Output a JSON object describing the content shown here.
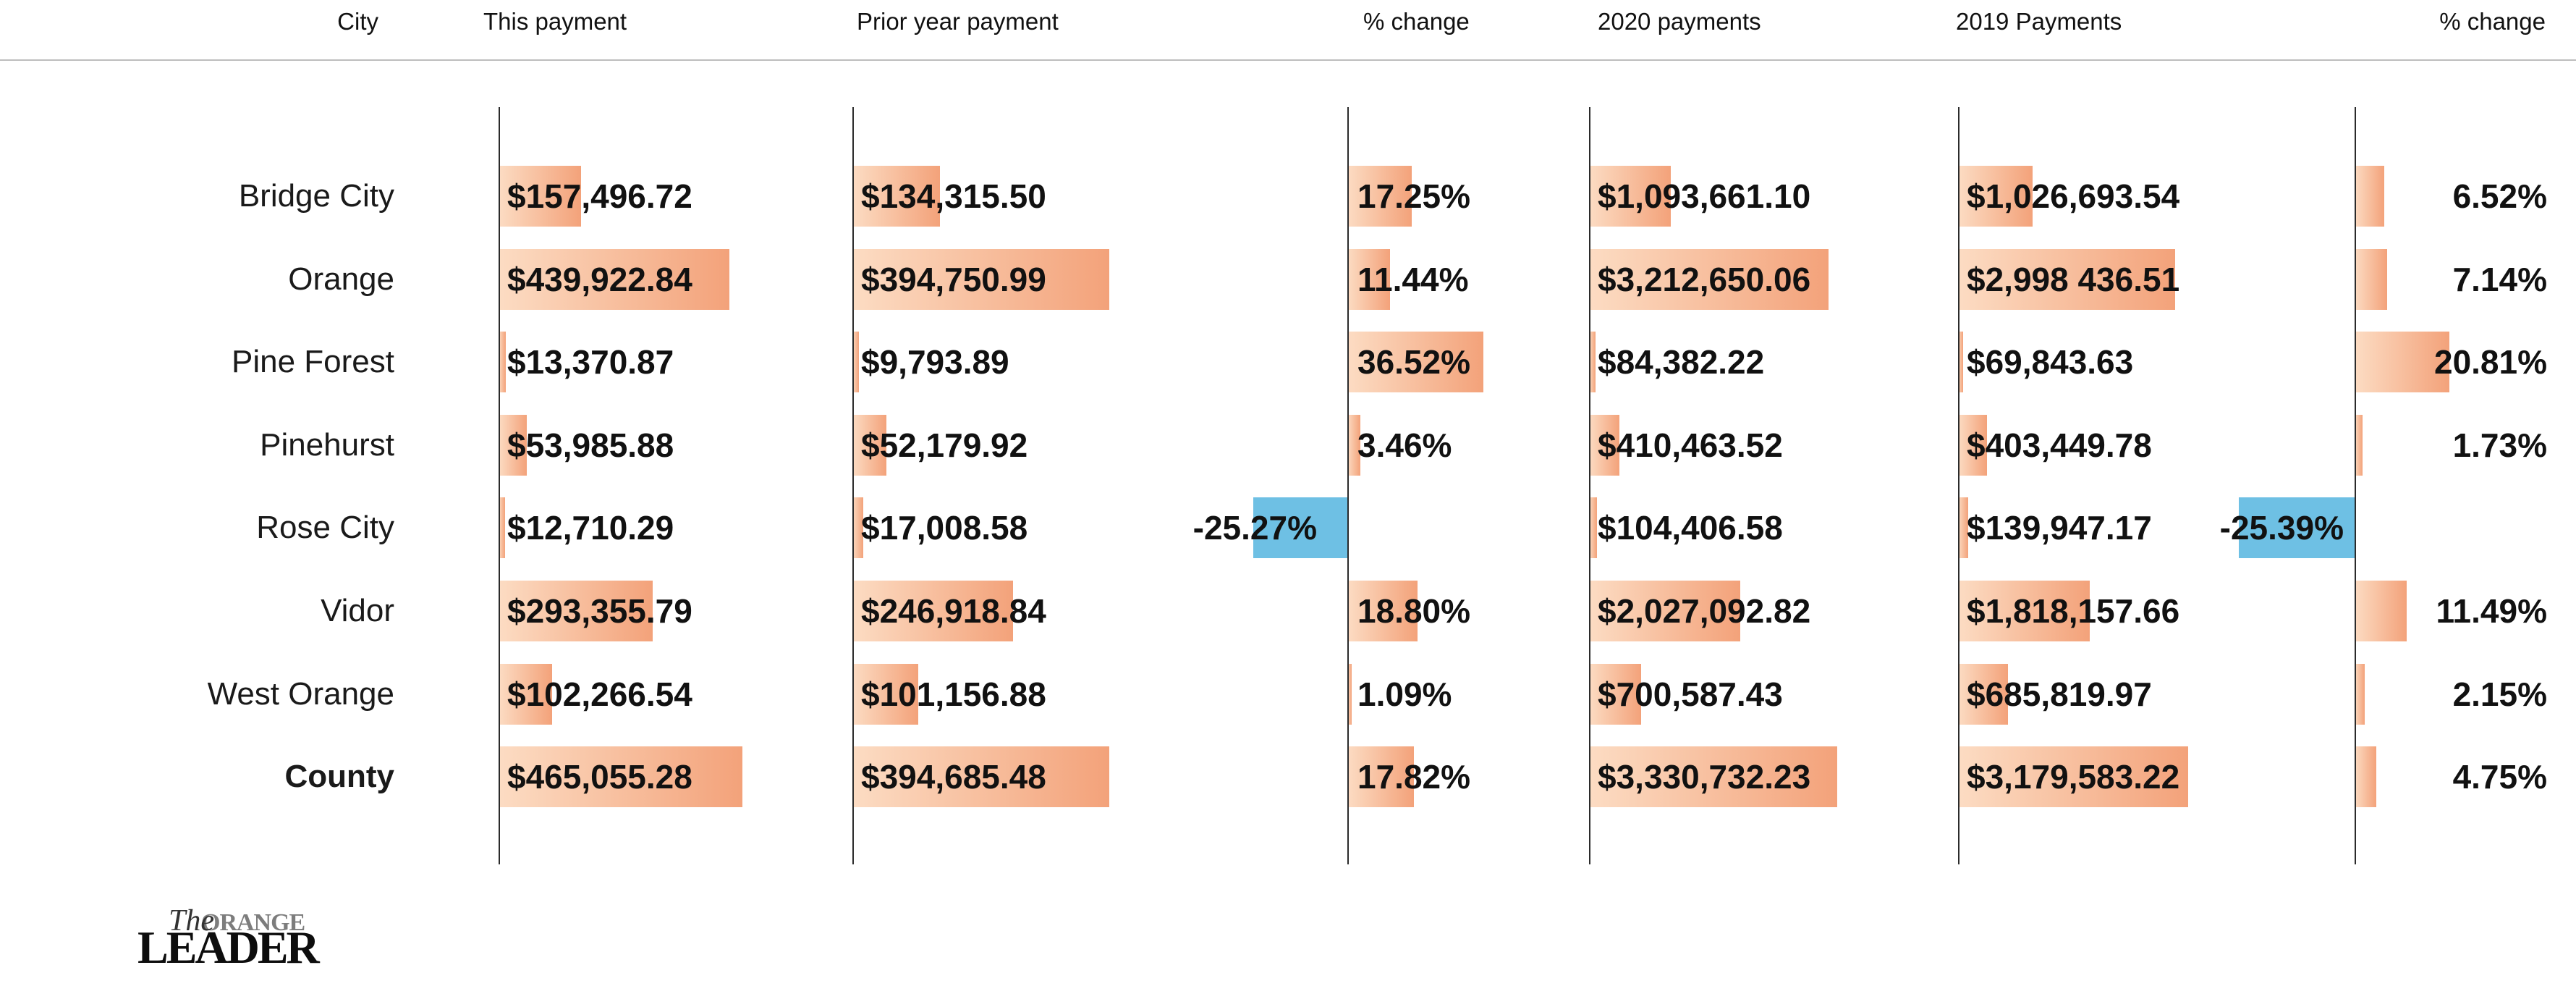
{
  "header": {
    "columns": [
      "City",
      "This payment",
      "Prior year payment",
      "% change",
      "2020 payments",
      "2019 Payments",
      "% change"
    ]
  },
  "rows": [
    {
      "city": "Bridge City",
      "this_payment": "$157,496.72",
      "prior_payment": "$134,315.50",
      "pct_change_prior": "17.25%",
      "payments_2020": "$1,093,661.10",
      "payments_2019": "$1,026,693.54",
      "pct_change_2019": "6.52%",
      "bold": false
    },
    {
      "city": "Orange",
      "this_payment": "$439,922.84",
      "prior_payment": "$394,750.99",
      "pct_change_prior": "11.44%",
      "payments_2020": "$3,212,650.06",
      "payments_2019": "$2,998 436.51",
      "pct_change_2019": "7.14%",
      "bold": false
    },
    {
      "city": "Pine Forest",
      "this_payment": "$13,370.87",
      "prior_payment": "$9,793.89",
      "pct_change_prior": "36.52%",
      "payments_2020": "$84,382.22",
      "payments_2019": "$69,843.63",
      "pct_change_2019": "20.81%",
      "bold": false
    },
    {
      "city": "Pinehurst",
      "this_payment": "$53,985.88",
      "prior_payment": "$52,179.92",
      "pct_change_prior": "3.46%",
      "payments_2020": "$410,463.52",
      "payments_2019": "$403,449.78",
      "pct_change_2019": "1.73%",
      "bold": false
    },
    {
      "city": "Rose City",
      "this_payment": "$12,710.29",
      "prior_payment": "$17,008.58",
      "pct_change_prior": "-25.27%",
      "payments_2020": "$104,406.58",
      "payments_2019": "$139,947.17",
      "pct_change_2019": "-25.39%",
      "bold": false
    },
    {
      "city": "Vidor",
      "this_payment": "$293,355.79",
      "prior_payment": "$246,918.84",
      "pct_change_prior": "18.80%",
      "payments_2020": "$2,027,092.82",
      "payments_2019": "$1,818,157.66",
      "pct_change_2019": "11.49%",
      "bold": false
    },
    {
      "city": "West Orange",
      "this_payment": "$102,266.54",
      "prior_payment": "$101,156.88",
      "pct_change_prior": "1.09%",
      "payments_2020": "$700,587.43",
      "payments_2019": "$685,819.97",
      "pct_change_2019": "2.15%",
      "bold": false
    },
    {
      "city": "County",
      "this_payment": "$465,055.28",
      "prior_payment": "$394,685.48",
      "pct_change_prior": "17.82%",
      "payments_2020": "$3,330,732.23",
      "payments_2019": "$3,179,583.22",
      "pct_change_2019": "4.75%",
      "bold": true
    }
  ],
  "logo": {
    "the": "The",
    "orange": "ORANGE",
    "leader": "LEADER"
  },
  "colors": {
    "bar_positive_start": "#fcdcc3",
    "bar_positive_end": "#f3a27a",
    "bar_negative_blue": "#6ec0e4",
    "axis_line": "#2b2b2b",
    "header_rule": "#bdbdbd",
    "text": "#111111"
  },
  "chart_data": {
    "type": "table",
    "subtype": "table-with-bars",
    "categories": [
      "Bridge City",
      "Orange",
      "Pine Forest",
      "Pinehurst",
      "Rose City",
      "Vidor",
      "West Orange",
      "County"
    ],
    "series": [
      {
        "name": "This payment",
        "values": [
          157496.72,
          439922.84,
          13370.87,
          53985.88,
          12710.29,
          293355.79,
          102266.54,
          465055.28
        ]
      },
      {
        "name": "Prior year payment",
        "values": [
          134315.5,
          394750.99,
          9793.89,
          52179.92,
          17008.58,
          246918.84,
          101156.88,
          394685.48
        ]
      },
      {
        "name": "% change",
        "values": [
          17.25,
          11.44,
          36.52,
          3.46,
          -25.27,
          18.8,
          1.09,
          17.82
        ]
      },
      {
        "name": "2020 payments",
        "values": [
          1093661.1,
          3212650.06,
          84382.22,
          410463.52,
          104406.58,
          2027092.82,
          700587.43,
          3330732.23
        ]
      },
      {
        "name": "2019 Payments",
        "values": [
          1026693.54,
          2998436.51,
          69843.63,
          403449.78,
          139947.17,
          1818157.66,
          685819.97,
          3179583.22
        ]
      },
      {
        "name": "% change",
        "values": [
          6.52,
          7.14,
          20.81,
          1.73,
          -25.39,
          11.49,
          2.15,
          4.75
        ]
      }
    ],
    "legend_position": "none",
    "grid": false,
    "notes": "Positive bars peach gradient grow from each column axis; negative values shown as blue bars extending left of axis."
  }
}
